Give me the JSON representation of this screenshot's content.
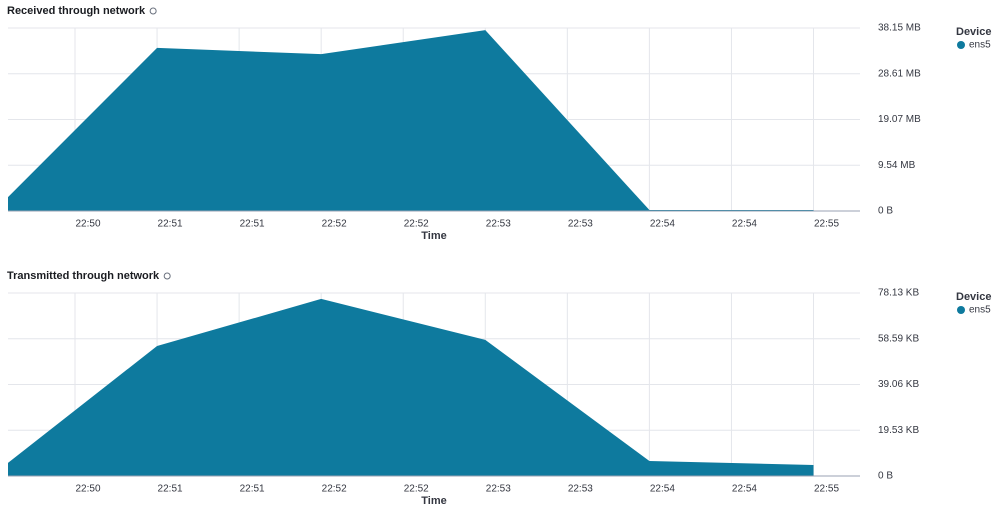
{
  "chart_data": [
    {
      "type": "area",
      "title": "Received through network",
      "x_label": "Time",
      "legend_title": "Device",
      "x": [
        -24.5,
        30,
        90,
        150,
        210,
        270
      ],
      "series": [
        {
          "name": "ens5",
          "color": "#0e7a9e",
          "values": [
            2.9,
            34.0,
            32.7,
            37.7,
            0.2,
            0.2
          ]
        }
      ],
      "xlim": [
        -24.5,
        287
      ],
      "xticks": [
        {
          "value": 0,
          "label": "22:50"
        },
        {
          "value": 30,
          "label": "22:51"
        },
        {
          "value": 60,
          "label": "22:51"
        },
        {
          "value": 90,
          "label": "22:52"
        },
        {
          "value": 120,
          "label": "22:52"
        },
        {
          "value": 150,
          "label": "22:53"
        },
        {
          "value": 180,
          "label": "22:53"
        },
        {
          "value": 210,
          "label": "22:54"
        },
        {
          "value": 240,
          "label": "22:54"
        },
        {
          "value": 270,
          "label": "22:55"
        }
      ],
      "ylim": [
        0,
        38.15
      ],
      "yticks": [
        {
          "value": 0,
          "label": "0 B"
        },
        {
          "value": 9.54,
          "label": "9.54 MB"
        },
        {
          "value": 19.07,
          "label": "19.07 MB"
        },
        {
          "value": 28.61,
          "label": "28.61 MB"
        },
        {
          "value": 38.15,
          "label": "38.15 MB"
        }
      ],
      "grid": true
    },
    {
      "type": "area",
      "title": "Transmitted through network",
      "x_label": "Time",
      "legend_title": "Device",
      "x": [
        -24.5,
        30,
        90,
        150,
        210,
        270
      ],
      "series": [
        {
          "name": "ens5",
          "color": "#0e7a9e",
          "values": [
            5.6,
            55.5,
            75.6,
            58.1,
            6.4,
            4.7
          ]
        }
      ],
      "xlim": [
        -24.5,
        287
      ],
      "xticks": [
        {
          "value": 0,
          "label": "22:50"
        },
        {
          "value": 30,
          "label": "22:51"
        },
        {
          "value": 60,
          "label": "22:51"
        },
        {
          "value": 90,
          "label": "22:52"
        },
        {
          "value": 120,
          "label": "22:52"
        },
        {
          "value": 150,
          "label": "22:53"
        },
        {
          "value": 180,
          "label": "22:53"
        },
        {
          "value": 210,
          "label": "22:54"
        },
        {
          "value": 240,
          "label": "22:54"
        },
        {
          "value": 270,
          "label": "22:55"
        }
      ],
      "ylim": [
        0,
        78.13
      ],
      "yticks": [
        {
          "value": 0,
          "label": "0 B"
        },
        {
          "value": 19.53,
          "label": "19.53 KB"
        },
        {
          "value": 39.06,
          "label": "39.06 KB"
        },
        {
          "value": 58.59,
          "label": "58.59 KB"
        },
        {
          "value": 78.13,
          "label": "78.13 KB"
        }
      ],
      "grid": true
    }
  ]
}
